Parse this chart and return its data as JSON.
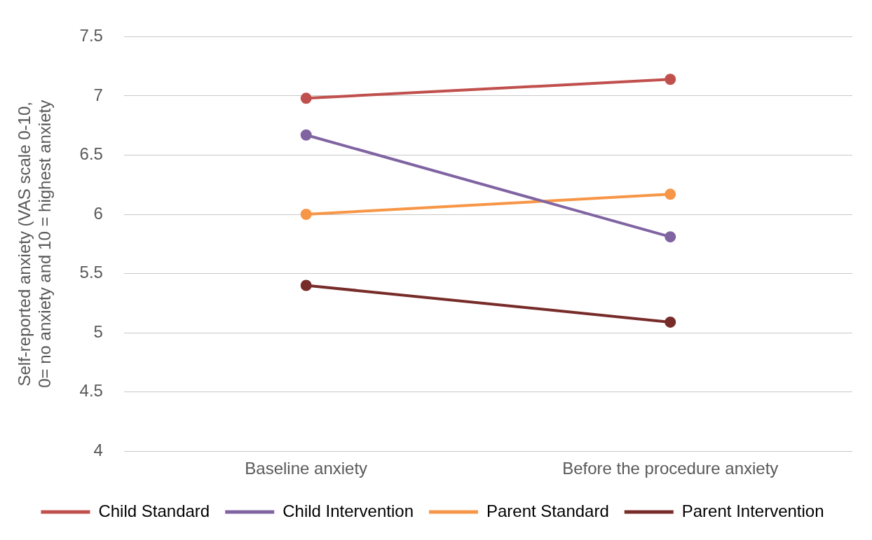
{
  "chart_data": {
    "type": "line",
    "ylabel": "Self-reported anxiety (VAS scale 0-10, 0= no anxiety and 10 = highest anxiety",
    "categories": [
      "Baseline anxiety",
      "Before the procedure anxiety"
    ],
    "series": [
      {
        "name": "Child Standard",
        "color": "#c0504d",
        "values": [
          6.98,
          7.14
        ]
      },
      {
        "name": "Child Intervention",
        "color": "#8064a2",
        "values": [
          6.67,
          5.81
        ]
      },
      {
        "name": "Parent Standard",
        "color": "#f79646",
        "values": [
          6.0,
          6.17
        ]
      },
      {
        "name": "Parent Intervention",
        "color": "#772c2a",
        "values": [
          5.4,
          5.09
        ]
      }
    ],
    "ylim": [
      4,
      7.5
    ],
    "yticks": [
      4,
      4.5,
      5,
      5.5,
      6,
      6.5,
      7,
      7.5
    ],
    "grid": "y",
    "legend": "bottom",
    "marker": "circle",
    "line_style": "solid"
  }
}
